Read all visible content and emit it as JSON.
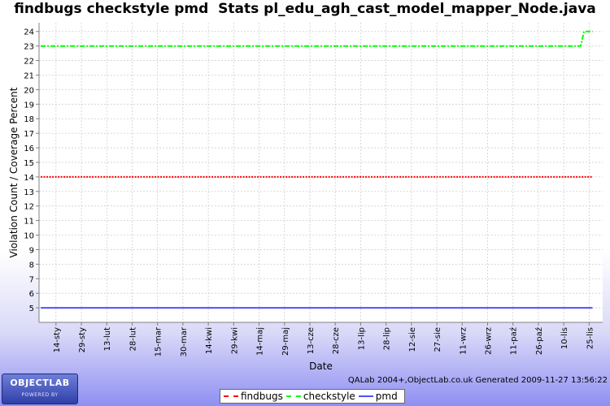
{
  "chart_data": {
    "type": "line",
    "title": "findbugs checkstyle pmd  Stats pl_edu_agh_cast_model_mapper_Node.java",
    "xlabel": "Date",
    "ylabel": "Violation Count / Coverage Percent",
    "ylim": [
      4,
      24.6
    ],
    "yticks": [
      5,
      6,
      7,
      8,
      9,
      10,
      11,
      12,
      13,
      14,
      15,
      16,
      17,
      18,
      19,
      20,
      21,
      22,
      23,
      24
    ],
    "xlim": [
      "2009-01-04",
      "2009-12-03"
    ],
    "x_tick_labels": [
      {
        "date": "2009-01-14",
        "label": "14-sty"
      },
      {
        "date": "2009-01-29",
        "label": "29-sty"
      },
      {
        "date": "2009-02-13",
        "label": "13-lut"
      },
      {
        "date": "2009-02-28",
        "label": "28-lut"
      },
      {
        "date": "2009-03-15",
        "label": "15-mar"
      },
      {
        "date": "2009-03-30",
        "label": "30-mar"
      },
      {
        "date": "2009-04-14",
        "label": "14-kwi"
      },
      {
        "date": "2009-04-29",
        "label": "29-kwi"
      },
      {
        "date": "2009-05-14",
        "label": "14-maj"
      },
      {
        "date": "2009-05-29",
        "label": "29-maj"
      },
      {
        "date": "2009-06-13",
        "label": "13-cze"
      },
      {
        "date": "2009-06-28",
        "label": "28-cze"
      },
      {
        "date": "2009-07-13",
        "label": "13-lip"
      },
      {
        "date": "2009-07-28",
        "label": "28-lip"
      },
      {
        "date": "2009-08-12",
        "label": "12-sie"
      },
      {
        "date": "2009-08-27",
        "label": "27-sie"
      },
      {
        "date": "2009-09-11",
        "label": "11-wrz"
      },
      {
        "date": "2009-09-26",
        "label": "26-wrz"
      },
      {
        "date": "2009-10-11",
        "label": "11-paź"
      },
      {
        "date": "2009-10-26",
        "label": "26-paź"
      },
      {
        "date": "2009-11-10",
        "label": "10-lis"
      },
      {
        "date": "2009-11-25",
        "label": "25-lis"
      }
    ],
    "grid": true,
    "legend_position": "bottom-center",
    "series": [
      {
        "name": "findbugs",
        "color": "#ff0000",
        "style": "dotted",
        "points": [
          {
            "x": "2009-01-05",
            "y": 14
          },
          {
            "x": "2009-11-27",
            "y": 14
          }
        ]
      },
      {
        "name": "checkstyle",
        "color": "#00ff00",
        "style": "dashdot",
        "points": [
          {
            "x": "2009-01-05",
            "y": 23
          },
          {
            "x": "2009-11-20",
            "y": 23
          },
          {
            "x": "2009-11-22",
            "y": 24
          },
          {
            "x": "2009-11-27",
            "y": 24
          }
        ]
      },
      {
        "name": "pmd",
        "color": "#5050ff",
        "style": "solid",
        "points": [
          {
            "x": "2009-01-05",
            "y": 5
          },
          {
            "x": "2009-11-27",
            "y": 5
          }
        ]
      }
    ]
  },
  "footer": {
    "generated": "QALab 2004+,ObjectLab.co.uk Generated 2009-11-27 13:56:22",
    "logo_main": "OBJECTLAB",
    "logo_sub": "POWERED BY"
  }
}
